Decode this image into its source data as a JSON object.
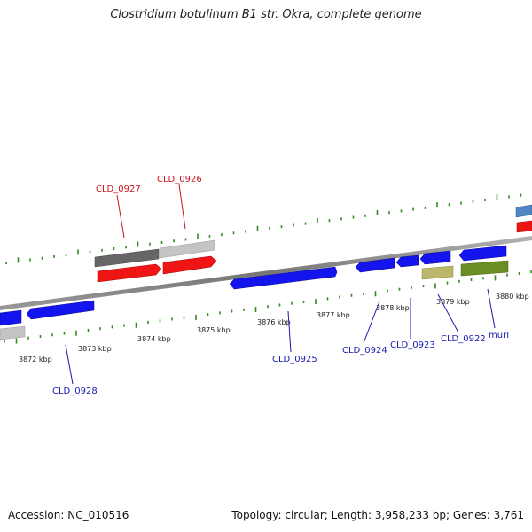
{
  "title": "Clostridium botulinum B1 str. Okra, complete genome",
  "footer": {
    "accession": "Accession: NC_010516",
    "summary": "Topology: circular; Length: 3,958,233 bp; Genes: 3,761"
  },
  "colors": {
    "backbone": "#8a8a8a",
    "tick": "#2e8b1e",
    "forward_label": "#c8161d",
    "reverse_label": "#1b1bb0"
  },
  "tick_labels": [
    "3872 kbp",
    "3873 kbp",
    "3874 kbp",
    "3875 kbp",
    "3876 kbp",
    "3877 kbp",
    "3878 kbp",
    "3879 kbp",
    "3880 kbp"
  ],
  "gene_labels": [
    {
      "name": "CLD_0927",
      "strand": "forward"
    },
    {
      "name": "CLD_0926",
      "strand": "forward"
    },
    {
      "name": "CLD_0925",
      "strand": "reverse"
    },
    {
      "name": "CLD_0928",
      "strand": "reverse"
    },
    {
      "name": "CLD_0924",
      "strand": "reverse"
    },
    {
      "name": "CLD_0923",
      "strand": "reverse"
    },
    {
      "name": "CLD_0922",
      "strand": "reverse"
    },
    {
      "name": "murI",
      "strand": "reverse"
    }
  ]
}
